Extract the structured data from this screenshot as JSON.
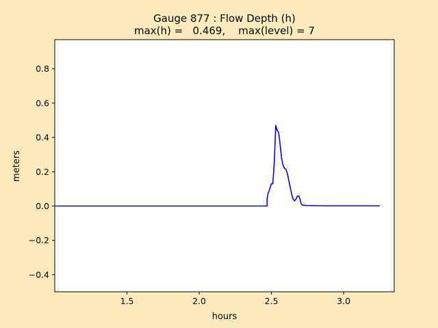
{
  "chart_data": {
    "type": "line",
    "title": "Gauge 877 : Flow Depth (h)",
    "subtitle": "max(h) =   0.469,    max(level) = 7",
    "xlabel": "hours",
    "ylabel": "meters",
    "xlim": [
      1.0,
      3.35
    ],
    "ylim": [
      -0.5,
      0.97
    ],
    "xticks": [
      1.5,
      2.0,
      2.5,
      3.0
    ],
    "xtick_labels": [
      "1.5",
      "2.0",
      "2.5",
      "3.0"
    ],
    "yticks": [
      -0.4,
      -0.2,
      0.0,
      0.2,
      0.4,
      0.6,
      0.8
    ],
    "ytick_labels": [
      "−0.4",
      "−0.2",
      "0.0",
      "0.2",
      "0.4",
      "0.6",
      "0.8"
    ],
    "grid": false,
    "series": [
      {
        "color": "#0000ff",
        "x": [
          1.0,
          2.47,
          2.47,
          2.476,
          2.484,
          2.492,
          2.5,
          2.51,
          2.52,
          2.53,
          2.54,
          2.55,
          2.56,
          2.57,
          2.58,
          2.59,
          2.6,
          2.61,
          2.62,
          2.63,
          2.64,
          2.65,
          2.66,
          2.67,
          2.68,
          2.69,
          2.7,
          2.705,
          2.71,
          2.715,
          2.72,
          2.73,
          2.75,
          2.8,
          2.9,
          3.0,
          3.1,
          3.25
        ],
        "y": [
          0.0,
          0.0,
          0.04,
          0.07,
          0.09,
          0.11,
          0.13,
          0.13,
          0.26,
          0.47,
          0.44,
          0.43,
          0.36,
          0.28,
          0.24,
          0.22,
          0.215,
          0.19,
          0.15,
          0.11,
          0.07,
          0.04,
          0.03,
          0.04,
          0.058,
          0.058,
          0.035,
          0.015,
          0.008,
          0.006,
          0.005,
          0.004,
          0.003,
          0.002,
          0.001,
          0.001,
          0.001,
          0.001
        ]
      }
    ]
  }
}
